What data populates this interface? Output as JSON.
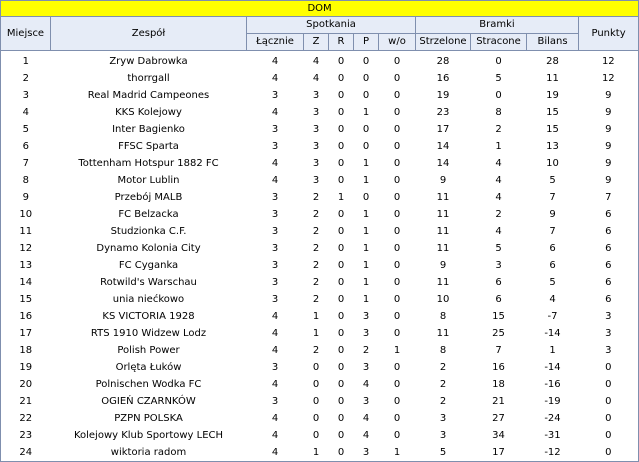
{
  "banner": "DOM",
  "headers": {
    "rank": "Miejsce",
    "team": "Zespół",
    "matches_group": "Spotkania",
    "goals_group": "Bramki",
    "points": "Punkty",
    "total": "Łącznie",
    "wins": "Z",
    "draws": "R",
    "losses": "P",
    "walkovers": "w/o",
    "scored": "Strzelone",
    "conceded": "Stracone",
    "balance": "Bilans"
  },
  "rows": [
    {
      "rank": "1",
      "team": "Zryw Dabrowka",
      "total": "4",
      "w": "4",
      "d": "0",
      "l": "0",
      "wo": "0",
      "gf": "28",
      "ga": "0",
      "bal": "28",
      "pts": "12"
    },
    {
      "rank": "2",
      "team": "thorrgall",
      "total": "4",
      "w": "4",
      "d": "0",
      "l": "0",
      "wo": "0",
      "gf": "16",
      "ga": "5",
      "bal": "11",
      "pts": "12"
    },
    {
      "rank": "3",
      "team": "Real Madrid Campeones",
      "total": "3",
      "w": "3",
      "d": "0",
      "l": "0",
      "wo": "0",
      "gf": "19",
      "ga": "0",
      "bal": "19",
      "pts": "9"
    },
    {
      "rank": "4",
      "team": "KKS Kolejowy",
      "total": "4",
      "w": "3",
      "d": "0",
      "l": "1",
      "wo": "0",
      "gf": "23",
      "ga": "8",
      "bal": "15",
      "pts": "9"
    },
    {
      "rank": "5",
      "team": "Inter Bagienko",
      "total": "3",
      "w": "3",
      "d": "0",
      "l": "0",
      "wo": "0",
      "gf": "17",
      "ga": "2",
      "bal": "15",
      "pts": "9"
    },
    {
      "rank": "6",
      "team": "FFSC Sparta",
      "total": "3",
      "w": "3",
      "d": "0",
      "l": "0",
      "wo": "0",
      "gf": "14",
      "ga": "1",
      "bal": "13",
      "pts": "9"
    },
    {
      "rank": "7",
      "team": "Tottenham Hotspur 1882 FC",
      "total": "4",
      "w": "3",
      "d": "0",
      "l": "1",
      "wo": "0",
      "gf": "14",
      "ga": "4",
      "bal": "10",
      "pts": "9"
    },
    {
      "rank": "8",
      "team": "Motor Lublin",
      "total": "4",
      "w": "3",
      "d": "0",
      "l": "1",
      "wo": "0",
      "gf": "9",
      "ga": "4",
      "bal": "5",
      "pts": "9"
    },
    {
      "rank": "9",
      "team": "Przebój MALB",
      "total": "3",
      "w": "2",
      "d": "1",
      "l": "0",
      "wo": "0",
      "gf": "11",
      "ga": "4",
      "bal": "7",
      "pts": "7"
    },
    {
      "rank": "10",
      "team": "FC Belzacka",
      "total": "3",
      "w": "2",
      "d": "0",
      "l": "1",
      "wo": "0",
      "gf": "11",
      "ga": "2",
      "bal": "9",
      "pts": "6"
    },
    {
      "rank": "11",
      "team": "Studzionka C.F.",
      "total": "3",
      "w": "2",
      "d": "0",
      "l": "1",
      "wo": "0",
      "gf": "11",
      "ga": "4",
      "bal": "7",
      "pts": "6"
    },
    {
      "rank": "12",
      "team": "Dynamo Kolonia City",
      "total": "3",
      "w": "2",
      "d": "0",
      "l": "1",
      "wo": "0",
      "gf": "11",
      "ga": "5",
      "bal": "6",
      "pts": "6"
    },
    {
      "rank": "13",
      "team": "FC Cyganka",
      "total": "3",
      "w": "2",
      "d": "0",
      "l": "1",
      "wo": "0",
      "gf": "9",
      "ga": "3",
      "bal": "6",
      "pts": "6"
    },
    {
      "rank": "14",
      "team": "Rotwild's Warschau",
      "total": "3",
      "w": "2",
      "d": "0",
      "l": "1",
      "wo": "0",
      "gf": "11",
      "ga": "6",
      "bal": "5",
      "pts": "6"
    },
    {
      "rank": "15",
      "team": "unia niećkowo",
      "total": "3",
      "w": "2",
      "d": "0",
      "l": "1",
      "wo": "0",
      "gf": "10",
      "ga": "6",
      "bal": "4",
      "pts": "6"
    },
    {
      "rank": "16",
      "team": "KS VICTORIA 1928",
      "total": "4",
      "w": "1",
      "d": "0",
      "l": "3",
      "wo": "0",
      "gf": "8",
      "ga": "15",
      "bal": "-7",
      "pts": "3"
    },
    {
      "rank": "17",
      "team": "RTS 1910 Widzew Lodz",
      "total": "4",
      "w": "1",
      "d": "0",
      "l": "3",
      "wo": "0",
      "gf": "11",
      "ga": "25",
      "bal": "-14",
      "pts": "3"
    },
    {
      "rank": "18",
      "team": "Polish Power",
      "total": "4",
      "w": "2",
      "d": "0",
      "l": "2",
      "wo": "1",
      "gf": "8",
      "ga": "7",
      "bal": "1",
      "pts": "3"
    },
    {
      "rank": "19",
      "team": "Orlęta Łuków",
      "total": "3",
      "w": "0",
      "d": "0",
      "l": "3",
      "wo": "0",
      "gf": "2",
      "ga": "16",
      "bal": "-14",
      "pts": "0"
    },
    {
      "rank": "20",
      "team": "Polnischen Wodka FC",
      "total": "4",
      "w": "0",
      "d": "0",
      "l": "4",
      "wo": "0",
      "gf": "2",
      "ga": "18",
      "bal": "-16",
      "pts": "0"
    },
    {
      "rank": "21",
      "team": "OGIEŃ CZARNKÓW",
      "total": "3",
      "w": "0",
      "d": "0",
      "l": "3",
      "wo": "0",
      "gf": "2",
      "ga": "21",
      "bal": "-19",
      "pts": "0"
    },
    {
      "rank": "22",
      "team": "PZPN POLSKA",
      "total": "4",
      "w": "0",
      "d": "0",
      "l": "4",
      "wo": "0",
      "gf": "3",
      "ga": "27",
      "bal": "-24",
      "pts": "0"
    },
    {
      "rank": "23",
      "team": "Kolejowy Klub Sportowy LECH",
      "total": "4",
      "w": "0",
      "d": "0",
      "l": "4",
      "wo": "0",
      "gf": "3",
      "ga": "34",
      "bal": "-31",
      "pts": "0"
    },
    {
      "rank": "24",
      "team": "wiktoria radom",
      "total": "4",
      "w": "1",
      "d": "0",
      "l": "3",
      "wo": "1",
      "gf": "5",
      "ga": "17",
      "bal": "-12",
      "pts": "0"
    }
  ],
  "colors": {
    "banner_bg": "#ffff00",
    "header_bg": "#e6ecf7",
    "header_border": "#7f8fae"
  }
}
